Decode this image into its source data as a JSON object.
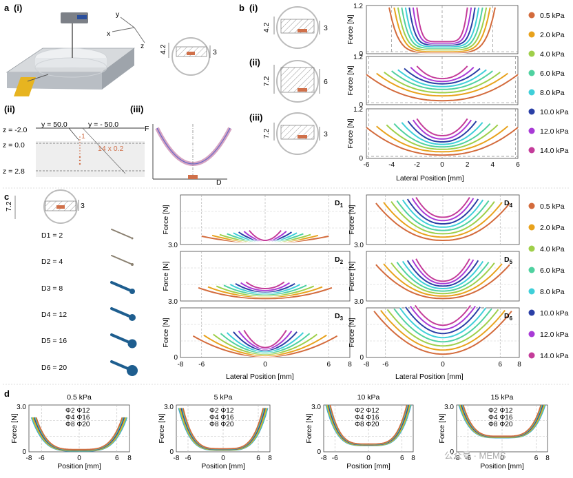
{
  "panels": {
    "a": "a",
    "a_i": "(i)",
    "a_ii": "(ii)",
    "a_iii": "(iii)",
    "b": "b",
    "b_i": "(i)",
    "b_ii": "(ii)",
    "b_iii": "(iii)",
    "c": "c",
    "d": "d"
  },
  "a_axes": {
    "x": "x",
    "y": "y",
    "z": "z"
  },
  "a_dims": {
    "d1": "4.2",
    "d2": "3"
  },
  "a_ii": {
    "y_left": "y = 50.0",
    "y_right": "y = - 50.0",
    "z_labels": [
      "z = -2.0",
      "z = 0.0",
      "z = 2.8"
    ],
    "step": "1",
    "repeat": "14 x 0.2"
  },
  "a_iii": {
    "y_label": "F",
    "x_label": "D"
  },
  "b_schematics": [
    {
      "outer": "4.2",
      "inner": "3"
    },
    {
      "outer": "7.2",
      "inner": "6"
    },
    {
      "outer": "7.2",
      "inner": "3"
    }
  ],
  "b_plots": {
    "ylabel": "Force [N]",
    "xlabel": "Lateral Position [mm]",
    "yticks": [
      "0",
      "1.2"
    ],
    "xticks": [
      "-6",
      "-4",
      "-2",
      "0",
      "2",
      "4",
      "6"
    ]
  },
  "legend": {
    "items": [
      "0.5 kPa",
      "2.0 kPa",
      "4.0 kPa",
      "6.0 kPa",
      "8.0 kPa",
      "10.0 kPa",
      "12.0 kPa",
      "14.0 kPa"
    ],
    "colors": [
      "#d36b3c",
      "#e8a21c",
      "#9fcf4a",
      "#4fd1a0",
      "#3fcfd9",
      "#2a3fa6",
      "#a83ad6",
      "#c43c9a"
    ]
  },
  "c_schematic": {
    "outer": "7.2",
    "inner": "3"
  },
  "c_probes": [
    "D1 = 2",
    "D2 = 4",
    "D3 = 8",
    "D4 = 12",
    "D5 = 16",
    "D6 = 20"
  ],
  "c_plots": {
    "ylabel": "Force [N]",
    "xlabel": "Lateral Position [mm]",
    "ytick_top": "3.0",
    "ytick_bottom": "0",
    "xticks": [
      "-8",
      "-6",
      "0",
      "6",
      "8"
    ],
    "tags": [
      "D1",
      "D2",
      "D3",
      "D4",
      "D5",
      "D6"
    ]
  },
  "d_plots": {
    "titles": [
      "0.5 kPa",
      "5 kPa",
      "10 kPa",
      "15 kPa"
    ],
    "ylabel": "Force [N]",
    "xlabel": "Position [mm]",
    "yticks": [
      "0",
      "3.0"
    ],
    "xticks": [
      "-8",
      "-6",
      "0",
      "6",
      "8"
    ],
    "legend": [
      "Φ2  Φ12",
      "Φ4  Φ16",
      "Φ8  Φ20"
    ]
  },
  "watermark": "公众号 · MEMS",
  "chart_data": [
    {
      "type": "line",
      "panel": "b(i)",
      "xlabel": "",
      "ylabel": "Force [N]",
      "xlim": [
        -6,
        6
      ],
      "ylim": [
        0,
        1.2
      ],
      "series": [
        {
          "name": "0.5 kPa",
          "x": [
            -4.2,
            -4,
            0,
            4,
            4.2
          ],
          "values": [
            1.2,
            0.05,
            0.03,
            0.05,
            1.2
          ]
        },
        {
          "name": "2.0 kPa",
          "x": [
            -3.8,
            0,
            3.8
          ],
          "values": [
            1.15,
            0.08,
            1.15
          ]
        },
        {
          "name": "4.0 kPa",
          "x": [
            -3.5,
            0,
            3.5
          ],
          "values": [
            1.15,
            0.12,
            1.15
          ]
        },
        {
          "name": "6.0 kPa",
          "x": [
            -3.2,
            0,
            3.2
          ],
          "values": [
            1.15,
            0.16,
            1.15
          ]
        },
        {
          "name": "8.0 kPa",
          "x": [
            -2.9,
            0,
            2.9
          ],
          "values": [
            1.15,
            0.2,
            1.15
          ]
        },
        {
          "name": "10.0 kPa",
          "x": [
            -2.6,
            0,
            2.6
          ],
          "values": [
            1.15,
            0.24,
            1.15
          ]
        },
        {
          "name": "12.0 kPa",
          "x": [
            -2.3,
            0,
            2.3
          ],
          "values": [
            1.15,
            0.28,
            1.15
          ]
        },
        {
          "name": "14.0 kPa",
          "x": [
            -2.0,
            0,
            2.0
          ],
          "values": [
            1.15,
            0.32,
            1.15
          ]
        }
      ]
    },
    {
      "type": "line",
      "panel": "b(ii)",
      "xlabel": "",
      "ylabel": "Force [N]",
      "xlim": [
        -6,
        6
      ],
      "ylim": [
        0,
        1.2
      ],
      "series": [
        {
          "name": "0.5 kPa",
          "x": [
            -6,
            0,
            6
          ],
          "values": [
            0.75,
            0.1,
            0.75
          ]
        },
        {
          "name": "14.0 kPa",
          "x": [
            -2,
            0,
            2
          ],
          "values": [
            0.95,
            0.65,
            0.95
          ]
        }
      ]
    },
    {
      "type": "line",
      "panel": "b(iii)",
      "xlabel": "Lateral Position [mm]",
      "ylabel": "Force [N]",
      "xlim": [
        -6,
        6
      ],
      "ylim": [
        0,
        1.2
      ],
      "series": [
        {
          "name": "0.5 kPa",
          "x": [
            -6,
            0,
            6
          ],
          "values": [
            0.75,
            0.08,
            0.75
          ]
        },
        {
          "name": "14.0 kPa",
          "x": [
            -2,
            0,
            2
          ],
          "values": [
            1.0,
            0.55,
            1.0
          ]
        }
      ]
    },
    {
      "type": "line",
      "panel": "c D1-D6",
      "xlabel": "Lateral Position [mm]",
      "ylabel": "Force [N]",
      "xlim": [
        -8,
        8
      ],
      "ylim": [
        0,
        3.0
      ]
    },
    {
      "type": "line",
      "panel": "d",
      "xlabel": "Position [mm]",
      "ylabel": "Force [N]",
      "xlim": [
        -8,
        8
      ],
      "ylim": [
        0,
        3.0
      ]
    }
  ]
}
